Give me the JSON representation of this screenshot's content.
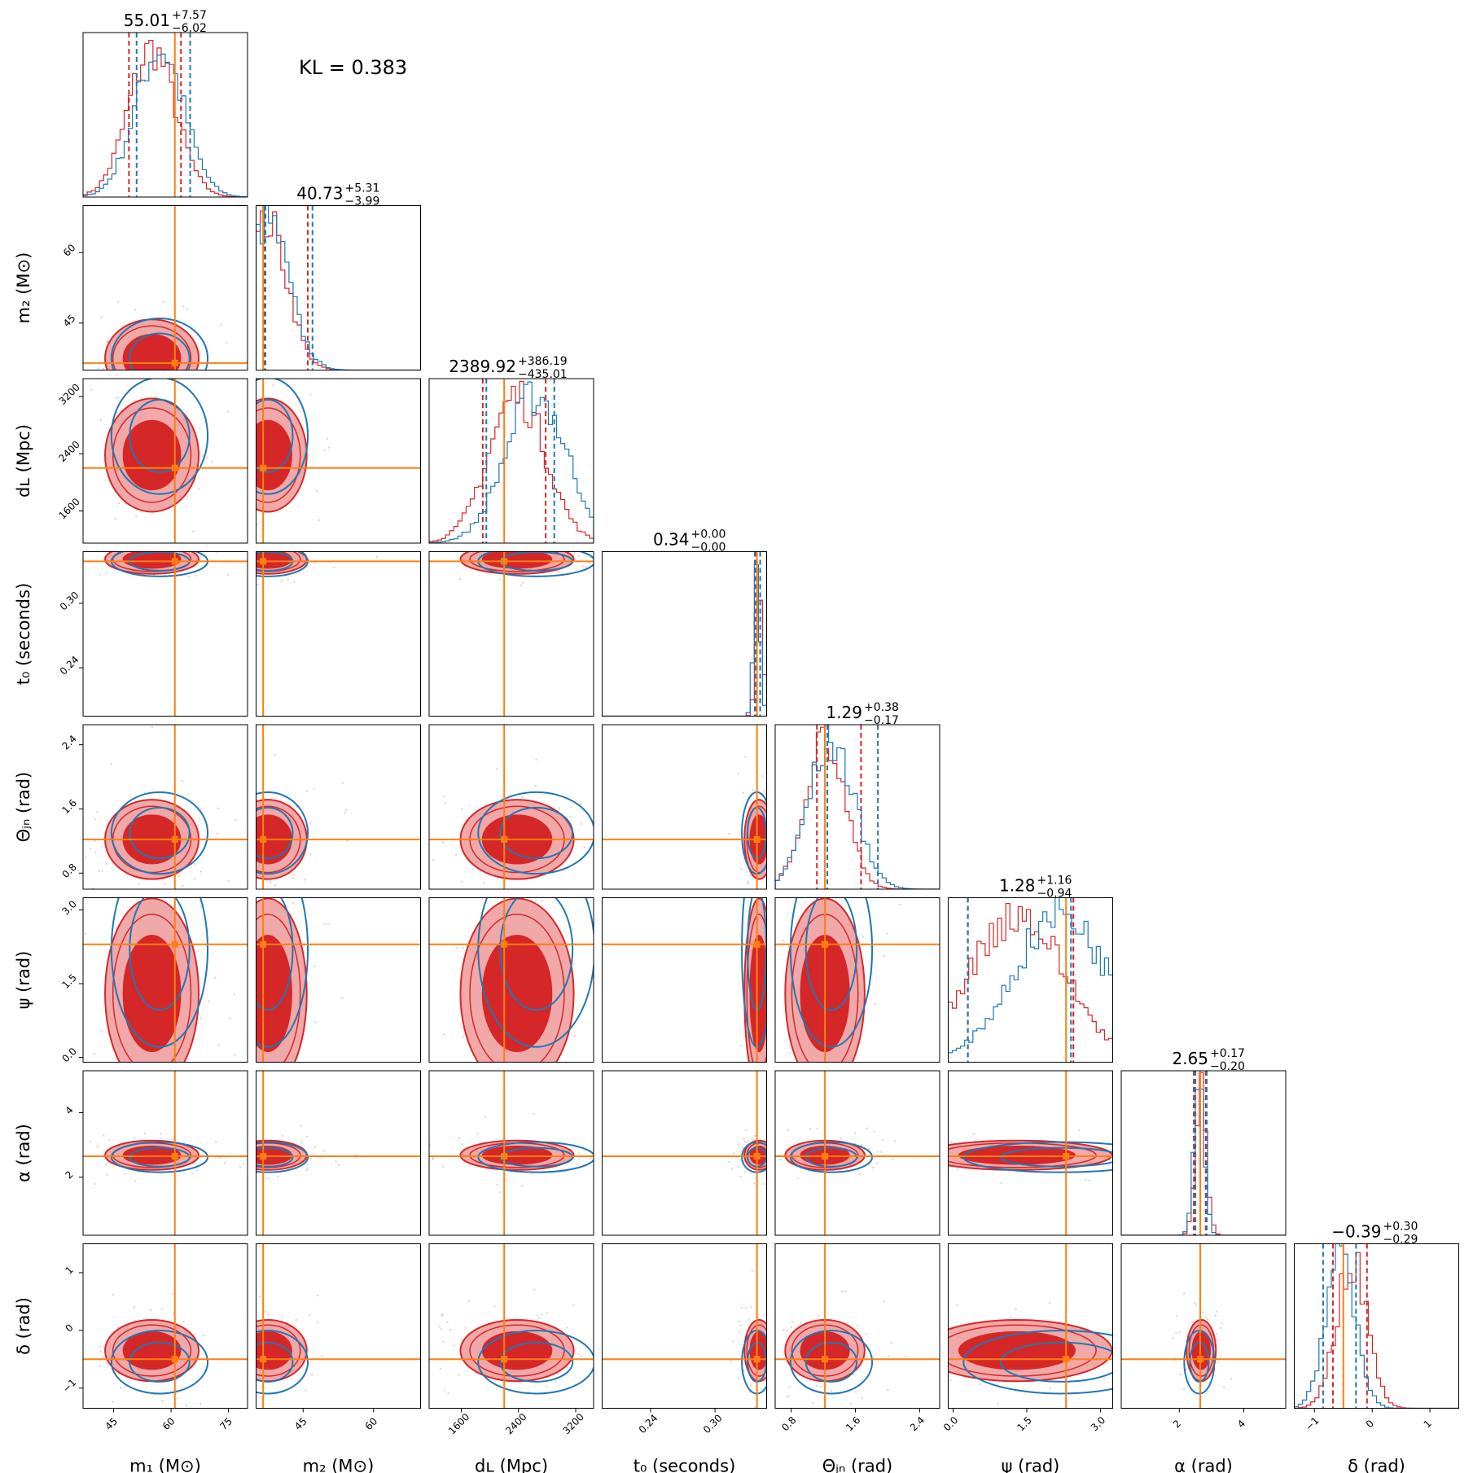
{
  "annotation": {
    "kl_text": "KL = 0.383"
  },
  "colors": {
    "red": "#d62728",
    "blue": "#1f77b4",
    "orange": "#ff7f0e",
    "red_fill_outer": "#f0a8a8",
    "red_fill_inner": "#d62728"
  },
  "chart_data": {
    "type": "corner",
    "grid": false,
    "parameters": [
      {
        "key": "m1",
        "label": "m₁ (M⊙)",
        "range": [
          37,
          80
        ],
        "ticks": [
          "45",
          "60",
          "75"
        ],
        "truth": 61,
        "median": 55.01,
        "plus": "+7.57",
        "minus": "−6.02",
        "title_value": "55.01"
      },
      {
        "key": "m2",
        "label": "m₂ (M⊙)",
        "range": [
          35,
          70
        ],
        "ticks": [
          "45",
          "60"
        ],
        "truth": 36.5,
        "median": 40.73,
        "plus": "+5.31",
        "minus": "−3.99",
        "title_value": "40.73"
      },
      {
        "key": "dL",
        "label": "dʟ (Mpc)",
        "range": [
          1150,
          3450
        ],
        "ticks": [
          "1600",
          "2400",
          "3200"
        ],
        "truth": 2200,
        "median": 2389.92,
        "plus": "+386.19",
        "minus": "−435.01",
        "title_value": "2389.92"
      },
      {
        "key": "t0",
        "label": "t₀ (seconds)",
        "range": [
          0.195,
          0.348
        ],
        "ticks": [
          "0.24",
          "0.30"
        ],
        "truth": 0.339,
        "median": 0.34,
        "plus": "+0.00",
        "minus": "−0.00",
        "title_value": "0.34"
      },
      {
        "key": "theta",
        "label": "Θⱼₙ (rad)",
        "range": [
          0.6,
          2.65
        ],
        "ticks": [
          "0.8",
          "1.6",
          "2.4"
        ],
        "truth": 1.22,
        "median": 1.29,
        "plus": "+0.38",
        "minus": "−0.17",
        "title_value": "1.29"
      },
      {
        "key": "psi",
        "label": "ψ (rad)",
        "range": [
          -0.1,
          3.25
        ],
        "ticks": [
          "0.0",
          "1.5",
          "3.0"
        ],
        "truth": 2.3,
        "median": 1.28,
        "plus": "+1.16",
        "minus": "−0.94",
        "title_value": "1.28"
      },
      {
        "key": "alpha",
        "label": "α (rad)",
        "range": [
          0.2,
          5.3
        ],
        "ticks": [
          "2",
          "4"
        ],
        "truth": 2.65,
        "median": 2.65,
        "plus": "+0.17",
        "minus": "−0.20",
        "title_value": "2.65"
      },
      {
        "key": "delta",
        "label": "δ (rad)",
        "range": [
          -1.35,
          1.5
        ],
        "ticks": [
          "−1",
          "0",
          "1"
        ],
        "truth": -0.5,
        "median": -0.39,
        "plus": "+0.30",
        "minus": "−0.29",
        "title_value": "−0.39"
      }
    ],
    "series": [
      {
        "name": "",
        "color": "#d62728",
        "peaks": [
          55,
          37.5,
          2380,
          0.341,
          1.22,
          1.3,
          2.68,
          -0.35
        ],
        "quantiles": [
          [
            49,
            62.6
          ],
          [
            36.8,
            46
          ],
          [
            1900,
            2780
          ],
          [
            0.338,
            0.342
          ],
          [
            1.12,
            1.67
          ],
          [
            0.3,
            2.45
          ],
          [
            2.45,
            2.82
          ],
          [
            -0.68,
            -0.09
          ]
        ]
      },
      {
        "name": "",
        "color": "#1f77b4",
        "peaks": [
          57,
          37.5,
          2650,
          0.339,
          1.3,
          2.2,
          2.62,
          -0.55
        ],
        "quantiles": [
          [
            51,
            65
          ],
          [
            37,
            47
          ],
          [
            1950,
            2900
          ],
          [
            0.337,
            0.342
          ],
          [
            1.25,
            1.88
          ],
          [
            0.3,
            2.4
          ],
          [
            2.5,
            2.85
          ],
          [
            -0.85,
            -0.28
          ]
        ]
      }
    ]
  }
}
